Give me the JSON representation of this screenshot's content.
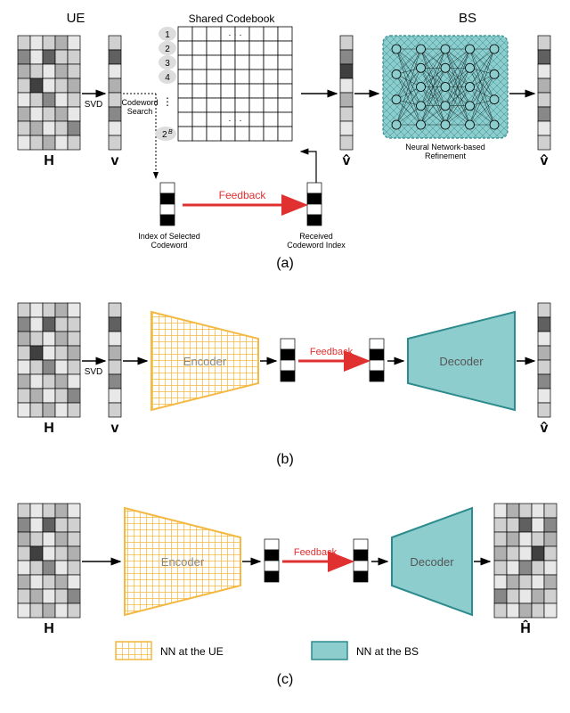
{
  "colors": {
    "teal": "#8ecdce",
    "teal_dark": "#2d8b8e",
    "yellow": "#f4b942",
    "red": "#e03030",
    "black": "#000000",
    "grid1": "#e8e8e8",
    "grid2": "#d0d0d0",
    "grid3": "#b0b0b0",
    "grid4": "#888888",
    "grid5": "#606060",
    "grid6": "#404040"
  },
  "labels": {
    "ue": "UE",
    "bs": "BS",
    "shared_codebook": "Shared Codebook",
    "svd": "SVD",
    "codeword_search": "Codeword\nSearch",
    "feedback": "Feedback",
    "H": "H",
    "Hhat": "Ĥ",
    "v": "v",
    "vhat": "v̂",
    "nn_refine": "Neural Network-based\nRefinement",
    "idx_sel": "Index of Selected\nCodeword",
    "idx_recv": "Received\nCodeword Index",
    "encoder": "Encoder",
    "decoder": "Decoder",
    "two_b": "2",
    "two_b_exp": "B",
    "nn_ue": "NN at the UE",
    "nn_bs": "NN at the BS",
    "panel_a": "(a)",
    "panel_b": "(b)",
    "panel_c": "(c)"
  },
  "matrix_H": {
    "rows": 8,
    "cols": 5,
    "cells": [
      [
        2,
        1,
        2,
        3,
        1
      ],
      [
        4,
        1,
        5,
        2,
        2
      ],
      [
        3,
        2,
        1,
        3,
        2
      ],
      [
        2,
        6,
        1,
        2,
        3
      ],
      [
        1,
        2,
        4,
        1,
        2
      ],
      [
        3,
        1,
        2,
        3,
        1
      ],
      [
        2,
        3,
        1,
        2,
        4
      ],
      [
        1,
        2,
        3,
        1,
        2
      ]
    ]
  },
  "vec_v": {
    "rows": 8,
    "cells": [
      2,
      5,
      1,
      3,
      2,
      4,
      1,
      2
    ]
  },
  "vec_vhat_mid": {
    "rows": 8,
    "cells": [
      2,
      4,
      6,
      1,
      3,
      2,
      1,
      2
    ]
  },
  "vec_vhat_out": {
    "rows": 8,
    "cells": [
      2,
      5,
      1,
      3,
      2,
      4,
      1,
      2
    ]
  },
  "codebook": {
    "rows": 8,
    "cols": 8
  },
  "bits": [
    0,
    1,
    0,
    1
  ],
  "nn_layers": [
    4,
    5,
    5,
    5,
    4
  ]
}
